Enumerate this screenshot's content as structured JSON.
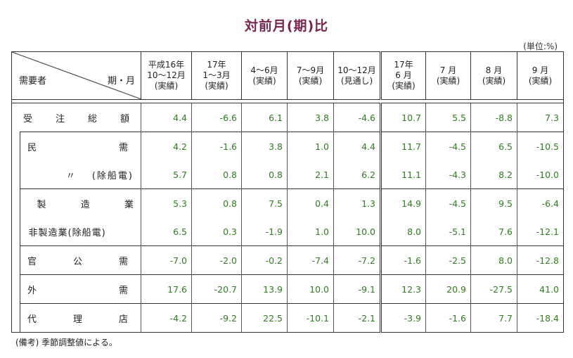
{
  "title": "対前月(期)比",
  "unit": "(単位:%)",
  "note": "(備考) 季節調整値による。",
  "corner": {
    "left": "需要者",
    "right": "期・月"
  },
  "columns": [
    {
      "l1": "平成16年",
      "l2": "10〜12月",
      "l3": "(実績)"
    },
    {
      "l1": "17年",
      "l2": "1〜3月",
      "l3": "(実績)"
    },
    {
      "l1": "",
      "l2": "4〜6月",
      "l3": "(実績)"
    },
    {
      "l1": "",
      "l2": "7〜9月",
      "l3": "(実績)"
    },
    {
      "l1": "",
      "l2": "10〜12月",
      "l3": "(見通し)"
    },
    {
      "l1": "17年",
      "l2": "6 月",
      "l3": "(実績)"
    },
    {
      "l1": "",
      "l2": "7 月",
      "l3": "(実績)"
    },
    {
      "l1": "",
      "l2": "8 月",
      "l3": "(実績)"
    },
    {
      "l1": "",
      "l2": "9 月",
      "l3": "(実績)"
    }
  ],
  "rows": [
    {
      "label": [
        "受",
        "注",
        "総",
        "額"
      ],
      "values": [
        "4.4",
        "-6.6",
        "6.1",
        "3.8",
        "-4.6",
        "10.7",
        "5.5",
        "-8.8",
        "7.3"
      ]
    },
    {
      "label": [
        "民",
        "需"
      ],
      "values": [
        "4.2",
        "-1.6",
        "3.8",
        "1.0",
        "4.4",
        "11.7",
        "-4.5",
        "6.5",
        "-10.5"
      ]
    },
    {
      "label": [
        "〃",
        "(除船電)"
      ],
      "values": [
        "5.7",
        "0.8",
        "0.8",
        "2.1",
        "6.2",
        "11.1",
        "-4.3",
        "8.2",
        "-10.0"
      ]
    },
    {
      "label": [
        "製",
        "造",
        "業"
      ],
      "values": [
        "5.3",
        "0.8",
        "7.5",
        "0.4",
        "1.3",
        "14.9",
        "-4.5",
        "9.5",
        "-6.4"
      ]
    },
    {
      "label": [
        "非製造業(除船電)"
      ],
      "values": [
        "6.5",
        "0.3",
        "-1.9",
        "1.0",
        "10.0",
        "8.0",
        "-5.1",
        "7.6",
        "-12.1"
      ]
    },
    {
      "label": [
        "官",
        "公",
        "需"
      ],
      "values": [
        "-7.0",
        "-2.0",
        "-0.2",
        "-7.4",
        "-7.2",
        "-1.6",
        "-2.5",
        "8.0",
        "-12.8"
      ]
    },
    {
      "label": [
        "外",
        "需"
      ],
      "values": [
        "17.6",
        "-20.7",
        "13.9",
        "10.0",
        "-9.1",
        "12.3",
        "20.9",
        "-27.5",
        "41.0"
      ]
    },
    {
      "label": [
        "代",
        "理",
        "店"
      ],
      "values": [
        "-4.2",
        "-9.2",
        "22.5",
        "-10.1",
        "-2.1",
        "-3.9",
        "-1.6",
        "7.7",
        "-18.4"
      ]
    }
  ]
}
